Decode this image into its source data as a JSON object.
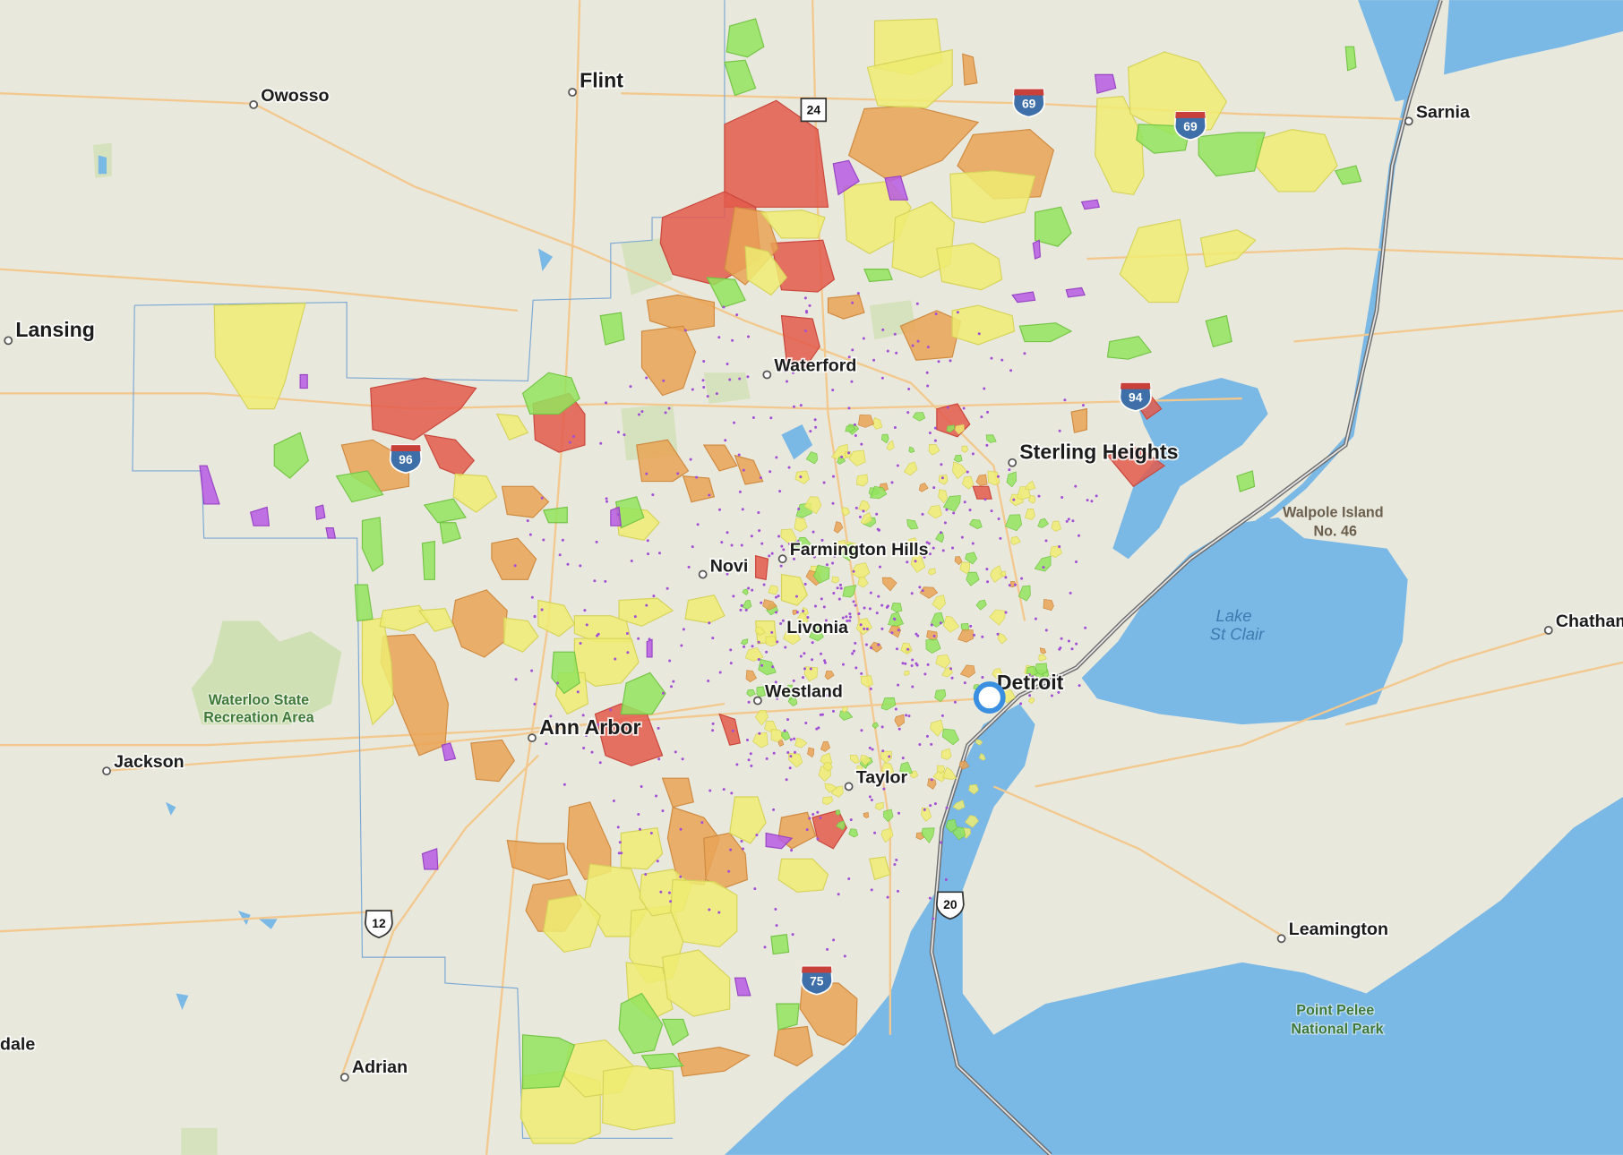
{
  "map_labels": {
    "cities": [
      "Owosso",
      "Flint",
      "Sarnia",
      "Lansing",
      "Waterford",
      "Sterling Heights",
      "Farmington Hills",
      "Novi",
      "Livonia",
      "Westland",
      "Detroit",
      "Ann Arbor",
      "Taylor",
      "Jackson",
      "Chatham",
      "Leamington",
      "Adrian",
      "dale"
    ],
    "highways": [
      "24",
      "69",
      "69",
      "94",
      "96",
      "12",
      "75",
      "20"
    ],
    "areas": [
      [
        "Waterloo State",
        "Recreation Area"
      ],
      [
        "Walpole Island",
        "No. 46"
      ],
      [
        "Lake",
        "St Clair"
      ],
      [
        "Point Pelee",
        "National Park"
      ]
    ]
  }
}
